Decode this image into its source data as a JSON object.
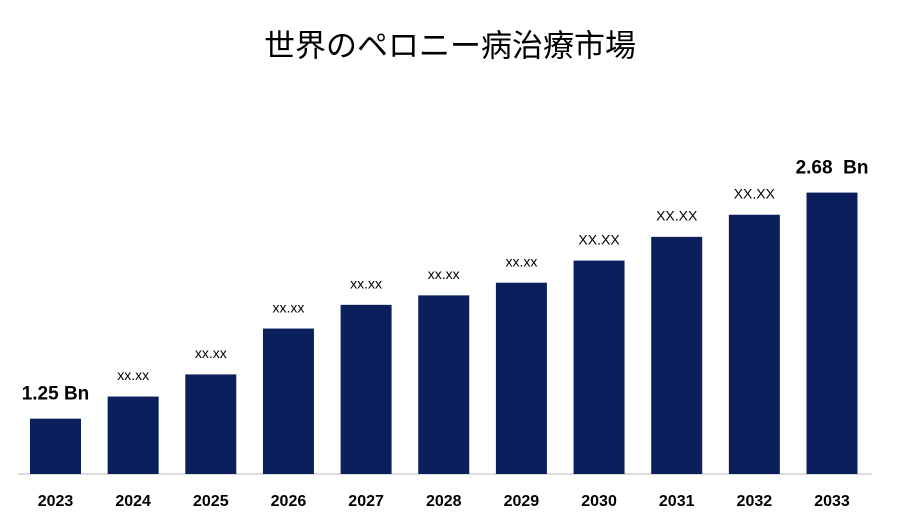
{
  "chart_data": {
    "type": "bar",
    "title": "世界のペロニー病治療市場",
    "categories": [
      "2023",
      "2024",
      "2025",
      "2026",
      "2027",
      "2028",
      "2029",
      "2030",
      "2031",
      "2032",
      "2033"
    ],
    "values": [
      1.25,
      1.39,
      1.53,
      1.82,
      1.97,
      2.03,
      2.11,
      2.25,
      2.4,
      2.54,
      2.68
    ],
    "value_labels": [
      "1.25 Bn",
      "xx.xx",
      "xx.xx",
      "xx.xx",
      "xx.xx",
      "xx.xx",
      "xx.xx",
      "XX.XX",
      "XX.XX",
      "XX.XX",
      "2.68  Bn"
    ],
    "color": "#0b1f5c",
    "ylim": [
      0.9,
      3.0
    ]
  }
}
